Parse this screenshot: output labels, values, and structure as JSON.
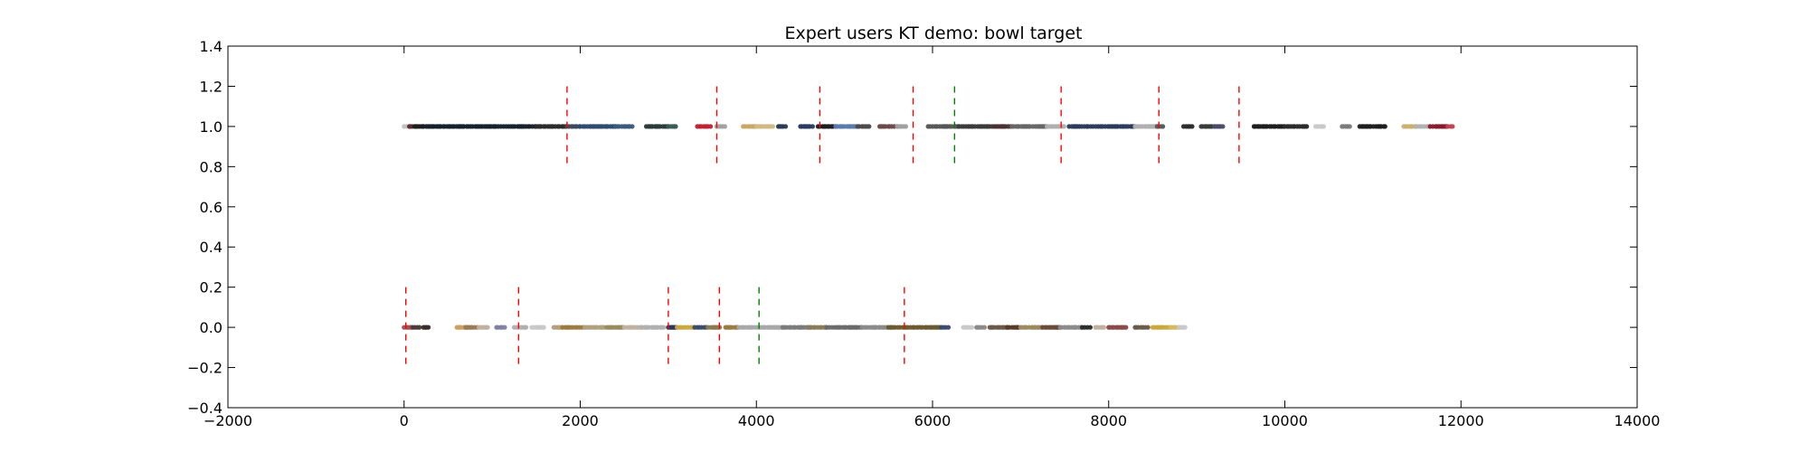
{
  "chart_data": {
    "type": "scatter",
    "title": "Expert users KT demo: bowl target",
    "xlabel": "",
    "ylabel": "",
    "xlim": [
      -2000,
      14000
    ],
    "ylim": [
      -0.4,
      1.4
    ],
    "xticks": [
      -2000,
      0,
      2000,
      4000,
      6000,
      8000,
      10000,
      12000,
      14000
    ],
    "xtick_labels": [
      "−2000",
      "0",
      "2000",
      "4000",
      "6000",
      "8000",
      "10000",
      "12000",
      "14000"
    ],
    "yticks": [
      -0.4,
      -0.2,
      0.0,
      0.2,
      0.4,
      0.6,
      0.8,
      1.0,
      1.2,
      1.4
    ],
    "ytick_labels": [
      "−0.4",
      "−0.2",
      "0.0",
      "0.2",
      "0.4",
      "0.6",
      "0.8",
      "1.0",
      "1.2",
      "1.4"
    ],
    "grid": false,
    "series": [
      {
        "y": 1.0,
        "segments": [
          {
            "x": [
              0,
              60
            ],
            "color": "#c0c0c0"
          },
          {
            "x": [
              60,
              120
            ],
            "color": "#5a2a35"
          },
          {
            "x": [
              120,
              220
            ],
            "color": "#1c1c1c"
          },
          {
            "x": [
              220,
              1500
            ],
            "color": "#16202a"
          },
          {
            "x": [
              1500,
              1850
            ],
            "color": "#2a2a2a"
          },
          {
            "x": [
              1850,
              2000
            ],
            "color": "#3a4a5a"
          },
          {
            "x": [
              2000,
              2400
            ],
            "color": "#2d4a70"
          },
          {
            "x": [
              2400,
              2600
            ],
            "color": "#3a5a7a"
          },
          {
            "x": [
              2750,
              3000
            ],
            "color": "#2a3a3a"
          },
          {
            "x": [
              3000,
              3100
            ],
            "color": "#3a5a5a"
          },
          {
            "x": [
              3330,
              3500
            ],
            "color": "#c02030"
          },
          {
            "x": [
              3550,
              3650
            ],
            "color": "#a0a0a0"
          },
          {
            "x": [
              3850,
              4000
            ],
            "color": "#c8a860"
          },
          {
            "x": [
              4000,
              4200
            ],
            "color": "#d0b880"
          },
          {
            "x": [
              4250,
              4350
            ],
            "color": "#2a3a50"
          },
          {
            "x": [
              4500,
              4650
            ],
            "color": "#2a3a60"
          },
          {
            "x": [
              4700,
              4900
            ],
            "color": "#1c1c24"
          },
          {
            "x": [
              4900,
              5150
            ],
            "color": "#5a7ab0"
          },
          {
            "x": [
              5150,
              5300
            ],
            "color": "#4a4a4a"
          },
          {
            "x": [
              5400,
              5600
            ],
            "color": "#6a4a4a"
          },
          {
            "x": [
              5600,
              5700
            ],
            "color": "#a0a0a0"
          },
          {
            "x": [
              5950,
              6300
            ],
            "color": "#555555"
          },
          {
            "x": [
              6300,
              6700
            ],
            "color": "#3a3a3a"
          },
          {
            "x": [
              6700,
              6900
            ],
            "color": "#4a3030"
          },
          {
            "x": [
              6900,
              7300
            ],
            "color": "#666666"
          },
          {
            "x": [
              7300,
              7500
            ],
            "color": "#b0b0b0"
          },
          {
            "x": [
              7550,
              8300
            ],
            "color": "#2a3a5a"
          },
          {
            "x": [
              8300,
              8550
            ],
            "color": "#b0b0b0"
          },
          {
            "x": [
              8550,
              8620
            ],
            "color": "#5a5a5a"
          },
          {
            "x": [
              8850,
              8950
            ],
            "color": "#2a2a2a"
          },
          {
            "x": [
              9050,
              9200
            ],
            "color": "#3a3a3a"
          },
          {
            "x": [
              9200,
              9300
            ],
            "color": "#4a4a6a"
          },
          {
            "x": [
              9650,
              10000
            ],
            "color": "#1c1c1c"
          },
          {
            "x": [
              10000,
              10250
            ],
            "color": "#2a2a2a"
          },
          {
            "x": [
              10350,
              10450
            ],
            "color": "#c8c8c8"
          },
          {
            "x": [
              10650,
              10750
            ],
            "color": "#7a7a7a"
          },
          {
            "x": [
              10850,
              11150
            ],
            "color": "#1c1c1c"
          },
          {
            "x": [
              11350,
              11500
            ],
            "color": "#c8b070"
          },
          {
            "x": [
              11500,
              11650
            ],
            "color": "#b0b0b0"
          },
          {
            "x": [
              11650,
              11850
            ],
            "color": "#8a1a2a"
          },
          {
            "x": [
              11850,
              11920
            ],
            "color": "#c04050"
          }
        ],
        "red_lines": [
          1850,
          3550,
          4720,
          5780,
          7460,
          8570,
          9480
        ],
        "green_lines": [
          6250
        ],
        "line_extent": [
          0.8,
          1.2
        ]
      },
      {
        "y": 0.0,
        "segments": [
          {
            "x": [
              0,
              100
            ],
            "color": "#a05050"
          },
          {
            "x": [
              100,
              180
            ],
            "color": "#4a3a3a"
          },
          {
            "x": [
              220,
              280
            ],
            "color": "#3a2a2a"
          },
          {
            "x": [
              600,
              700
            ],
            "color": "#c8a060"
          },
          {
            "x": [
              700,
              850
            ],
            "color": "#9a7a5a"
          },
          {
            "x": [
              850,
              950
            ],
            "color": "#c0b0a0"
          },
          {
            "x": [
              1050,
              1150
            ],
            "color": "#8080a0"
          },
          {
            "x": [
              1250,
              1400
            ],
            "color": "#b0b0b0"
          },
          {
            "x": [
              1450,
              1600
            ],
            "color": "#c8c8c8"
          },
          {
            "x": [
              1700,
              1800
            ],
            "color": "#b0a080"
          },
          {
            "x": [
              1800,
              2050
            ],
            "color": "#9a7a40"
          },
          {
            "x": [
              2050,
              2300
            ],
            "color": "#b0a080"
          },
          {
            "x": [
              2300,
              2500
            ],
            "color": "#9a8a60"
          },
          {
            "x": [
              2500,
              2700
            ],
            "color": "#c0b0a0"
          },
          {
            "x": [
              2700,
              2950
            ],
            "color": "#b0b0b0"
          },
          {
            "x": [
              3000,
              3100
            ],
            "color": "#2a3a5a"
          },
          {
            "x": [
              3100,
              3300
            ],
            "color": "#c8a840"
          },
          {
            "x": [
              3300,
              3450
            ],
            "color": "#3a4a6a"
          },
          {
            "x": [
              3450,
              3600
            ],
            "color": "#8a7a50"
          },
          {
            "x": [
              3650,
              3800
            ],
            "color": "#9a7a40"
          },
          {
            "x": [
              3800,
              4300
            ],
            "color": "#a8a8a8"
          },
          {
            "x": [
              4300,
              4600
            ],
            "color": "#7a7a7a"
          },
          {
            "x": [
              4600,
              4800
            ],
            "color": "#8a7a5a"
          },
          {
            "x": [
              4800,
              5200
            ],
            "color": "#6a6a6a"
          },
          {
            "x": [
              5200,
              5500
            ],
            "color": "#8a8a8a"
          },
          {
            "x": [
              5500,
              6100
            ],
            "color": "#6a5a30"
          },
          {
            "x": [
              6100,
              6200
            ],
            "color": "#3a4a6a"
          },
          {
            "x": [
              6350,
              6450
            ],
            "color": "#c8c8c8"
          },
          {
            "x": [
              6500,
              6600
            ],
            "color": "#8a8a8a"
          },
          {
            "x": [
              6650,
              6850
            ],
            "color": "#6a5a4a"
          },
          {
            "x": [
              6850,
              7000
            ],
            "color": "#5a3a2a"
          },
          {
            "x": [
              7000,
              7250
            ],
            "color": "#9a8a60"
          },
          {
            "x": [
              7250,
              7450
            ],
            "color": "#6a4a3a"
          },
          {
            "x": [
              7450,
              7700
            ],
            "color": "#8a8a8a"
          },
          {
            "x": [
              7700,
              7800
            ],
            "color": "#2a2a2a"
          },
          {
            "x": [
              7850,
              7950
            ],
            "color": "#c0b0a0"
          },
          {
            "x": [
              8000,
              8200
            ],
            "color": "#8a4a4a"
          },
          {
            "x": [
              8300,
              8450
            ],
            "color": "#6a5a4a"
          },
          {
            "x": [
              8500,
              8700
            ],
            "color": "#c8a840"
          },
          {
            "x": [
              8700,
              8800
            ],
            "color": "#d4b860"
          },
          {
            "x": [
              8800,
              8880
            ],
            "color": "#c8c8c8"
          }
        ],
        "red_lines": [
          20,
          1300,
          3000,
          3580,
          5680
        ],
        "green_lines": [
          4030
        ],
        "line_extent": [
          -0.2,
          0.2
        ]
      }
    ]
  }
}
